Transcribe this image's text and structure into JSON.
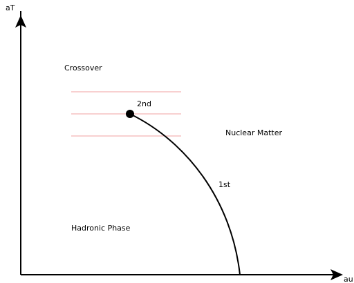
{
  "axes": {
    "y_label": "aT",
    "x_label": "au"
  },
  "regions": {
    "crossover": "Crossover",
    "nuclear_matter": "Nuclear Matter",
    "hadronic_phase": "Hadronic Phase"
  },
  "transitions": {
    "second_order": "2nd",
    "first_order": "1st"
  }
}
